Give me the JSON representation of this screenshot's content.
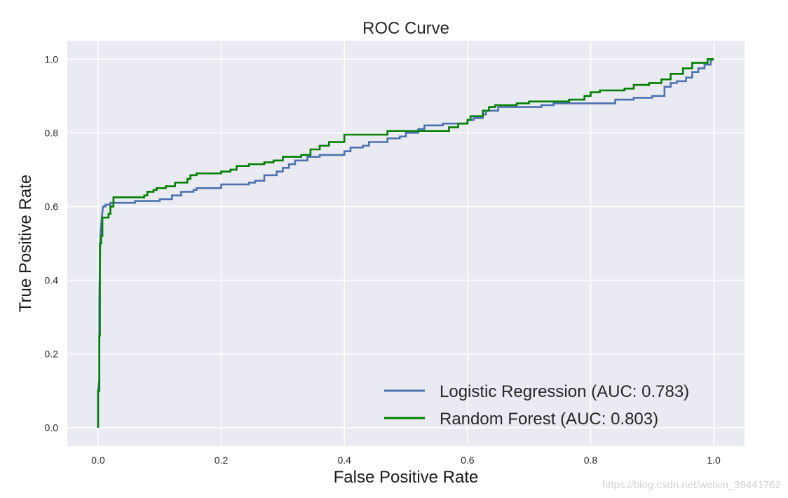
{
  "watermark": "https://blog.csdn.net/weixin_39441762",
  "chart_data": {
    "type": "line",
    "title": "ROC Curve",
    "xlabel": "False Positive Rate",
    "ylabel": "True Positive Rate",
    "xlim": [
      -0.05,
      1.05
    ],
    "ylim": [
      -0.05,
      1.05
    ],
    "xticks": [
      0.0,
      0.2,
      0.4,
      0.6,
      0.8,
      1.0
    ],
    "yticks": [
      0.0,
      0.2,
      0.4,
      0.6,
      0.8,
      1.0
    ],
    "xtick_labels": [
      "0.0",
      "0.2",
      "0.4",
      "0.6",
      "0.8",
      "1.0"
    ],
    "ytick_labels": [
      "0.0",
      "0.2",
      "0.4",
      "0.6",
      "0.8",
      "1.0"
    ],
    "grid": true,
    "legend_position": "lower-right",
    "background_color": "#eaeaf2",
    "series": [
      {
        "name": "Logistic Regression (AUC: 0.783)",
        "color": "#4c72b0",
        "points": [
          [
            0.0,
            0.0
          ],
          [
            0.0,
            0.1
          ],
          [
            0.002,
            0.13
          ],
          [
            0.002,
            0.35
          ],
          [
            0.003,
            0.45
          ],
          [
            0.004,
            0.53
          ],
          [
            0.006,
            0.57
          ],
          [
            0.008,
            0.6
          ],
          [
            0.012,
            0.6
          ],
          [
            0.012,
            0.605
          ],
          [
            0.02,
            0.605
          ],
          [
            0.02,
            0.61
          ],
          [
            0.06,
            0.61
          ],
          [
            0.06,
            0.615
          ],
          [
            0.1,
            0.615
          ],
          [
            0.1,
            0.62
          ],
          [
            0.12,
            0.62
          ],
          [
            0.12,
            0.63
          ],
          [
            0.135,
            0.63
          ],
          [
            0.135,
            0.64
          ],
          [
            0.155,
            0.64
          ],
          [
            0.155,
            0.645
          ],
          [
            0.16,
            0.645
          ],
          [
            0.16,
            0.65
          ],
          [
            0.2,
            0.65
          ],
          [
            0.2,
            0.66
          ],
          [
            0.245,
            0.66
          ],
          [
            0.245,
            0.665
          ],
          [
            0.255,
            0.665
          ],
          [
            0.255,
            0.67
          ],
          [
            0.27,
            0.67
          ],
          [
            0.27,
            0.685
          ],
          [
            0.29,
            0.685
          ],
          [
            0.29,
            0.695
          ],
          [
            0.3,
            0.695
          ],
          [
            0.3,
            0.705
          ],
          [
            0.31,
            0.705
          ],
          [
            0.31,
            0.715
          ],
          [
            0.32,
            0.715
          ],
          [
            0.32,
            0.725
          ],
          [
            0.34,
            0.725
          ],
          [
            0.34,
            0.735
          ],
          [
            0.36,
            0.735
          ],
          [
            0.36,
            0.74
          ],
          [
            0.4,
            0.74
          ],
          [
            0.4,
            0.75
          ],
          [
            0.41,
            0.75
          ],
          [
            0.41,
            0.76
          ],
          [
            0.43,
            0.76
          ],
          [
            0.43,
            0.765
          ],
          [
            0.44,
            0.765
          ],
          [
            0.44,
            0.775
          ],
          [
            0.47,
            0.775
          ],
          [
            0.47,
            0.785
          ],
          [
            0.49,
            0.785
          ],
          [
            0.49,
            0.79
          ],
          [
            0.5,
            0.79
          ],
          [
            0.5,
            0.8
          ],
          [
            0.52,
            0.8
          ],
          [
            0.52,
            0.81
          ],
          [
            0.53,
            0.81
          ],
          [
            0.53,
            0.82
          ],
          [
            0.56,
            0.82
          ],
          [
            0.56,
            0.825
          ],
          [
            0.6,
            0.825
          ],
          [
            0.6,
            0.835
          ],
          [
            0.61,
            0.835
          ],
          [
            0.61,
            0.84
          ],
          [
            0.625,
            0.84
          ],
          [
            0.625,
            0.85
          ],
          [
            0.63,
            0.85
          ],
          [
            0.63,
            0.86
          ],
          [
            0.65,
            0.86
          ],
          [
            0.65,
            0.87
          ],
          [
            0.72,
            0.87
          ],
          [
            0.72,
            0.875
          ],
          [
            0.74,
            0.875
          ],
          [
            0.74,
            0.88
          ],
          [
            0.84,
            0.88
          ],
          [
            0.84,
            0.89
          ],
          [
            0.87,
            0.89
          ],
          [
            0.87,
            0.895
          ],
          [
            0.9,
            0.895
          ],
          [
            0.9,
            0.9
          ],
          [
            0.92,
            0.9
          ],
          [
            0.92,
            0.925
          ],
          [
            0.93,
            0.925
          ],
          [
            0.93,
            0.935
          ],
          [
            0.94,
            0.935
          ],
          [
            0.94,
            0.94
          ],
          [
            0.955,
            0.94
          ],
          [
            0.955,
            0.95
          ],
          [
            0.965,
            0.95
          ],
          [
            0.965,
            0.965
          ],
          [
            0.975,
            0.965
          ],
          [
            0.975,
            0.975
          ],
          [
            0.985,
            0.975
          ],
          [
            0.985,
            0.985
          ],
          [
            0.995,
            0.985
          ],
          [
            0.995,
            0.995
          ],
          [
            1.0,
            1.0
          ]
        ]
      },
      {
        "name": "Random Forest (AUC: 0.803)",
        "color": "#008000",
        "points": [
          [
            0.0,
            0.0
          ],
          [
            0.0,
            0.1
          ],
          [
            0.002,
            0.1
          ],
          [
            0.002,
            0.25
          ],
          [
            0.003,
            0.25
          ],
          [
            0.003,
            0.5
          ],
          [
            0.005,
            0.5
          ],
          [
            0.005,
            0.52
          ],
          [
            0.007,
            0.52
          ],
          [
            0.007,
            0.57
          ],
          [
            0.017,
            0.57
          ],
          [
            0.017,
            0.58
          ],
          [
            0.02,
            0.58
          ],
          [
            0.02,
            0.6
          ],
          [
            0.025,
            0.6
          ],
          [
            0.025,
            0.625
          ],
          [
            0.075,
            0.625
          ],
          [
            0.075,
            0.63
          ],
          [
            0.08,
            0.63
          ],
          [
            0.08,
            0.64
          ],
          [
            0.09,
            0.64
          ],
          [
            0.09,
            0.645
          ],
          [
            0.095,
            0.645
          ],
          [
            0.095,
            0.65
          ],
          [
            0.11,
            0.65
          ],
          [
            0.11,
            0.655
          ],
          [
            0.125,
            0.655
          ],
          [
            0.125,
            0.665
          ],
          [
            0.145,
            0.665
          ],
          [
            0.145,
            0.675
          ],
          [
            0.15,
            0.675
          ],
          [
            0.15,
            0.685
          ],
          [
            0.16,
            0.685
          ],
          [
            0.16,
            0.69
          ],
          [
            0.2,
            0.69
          ],
          [
            0.2,
            0.695
          ],
          [
            0.215,
            0.695
          ],
          [
            0.215,
            0.7
          ],
          [
            0.225,
            0.7
          ],
          [
            0.225,
            0.71
          ],
          [
            0.245,
            0.71
          ],
          [
            0.245,
            0.715
          ],
          [
            0.27,
            0.715
          ],
          [
            0.27,
            0.72
          ],
          [
            0.285,
            0.72
          ],
          [
            0.285,
            0.725
          ],
          [
            0.3,
            0.725
          ],
          [
            0.3,
            0.735
          ],
          [
            0.33,
            0.735
          ],
          [
            0.33,
            0.74
          ],
          [
            0.345,
            0.74
          ],
          [
            0.345,
            0.755
          ],
          [
            0.36,
            0.755
          ],
          [
            0.36,
            0.765
          ],
          [
            0.375,
            0.765
          ],
          [
            0.375,
            0.775
          ],
          [
            0.4,
            0.775
          ],
          [
            0.4,
            0.795
          ],
          [
            0.47,
            0.795
          ],
          [
            0.47,
            0.805
          ],
          [
            0.57,
            0.805
          ],
          [
            0.57,
            0.815
          ],
          [
            0.585,
            0.815
          ],
          [
            0.585,
            0.825
          ],
          [
            0.6,
            0.825
          ],
          [
            0.6,
            0.835
          ],
          [
            0.605,
            0.835
          ],
          [
            0.605,
            0.845
          ],
          [
            0.625,
            0.845
          ],
          [
            0.625,
            0.86
          ],
          [
            0.635,
            0.86
          ],
          [
            0.635,
            0.87
          ],
          [
            0.645,
            0.87
          ],
          [
            0.645,
            0.875
          ],
          [
            0.68,
            0.875
          ],
          [
            0.68,
            0.88
          ],
          [
            0.7,
            0.88
          ],
          [
            0.7,
            0.885
          ],
          [
            0.765,
            0.885
          ],
          [
            0.765,
            0.89
          ],
          [
            0.79,
            0.89
          ],
          [
            0.79,
            0.9
          ],
          [
            0.8,
            0.9
          ],
          [
            0.8,
            0.91
          ],
          [
            0.815,
            0.91
          ],
          [
            0.815,
            0.915
          ],
          [
            0.855,
            0.915
          ],
          [
            0.855,
            0.92
          ],
          [
            0.87,
            0.92
          ],
          [
            0.87,
            0.93
          ],
          [
            0.895,
            0.93
          ],
          [
            0.895,
            0.935
          ],
          [
            0.915,
            0.935
          ],
          [
            0.915,
            0.945
          ],
          [
            0.93,
            0.945
          ],
          [
            0.93,
            0.96
          ],
          [
            0.95,
            0.96
          ],
          [
            0.95,
            0.975
          ],
          [
            0.965,
            0.975
          ],
          [
            0.965,
            0.99
          ],
          [
            0.99,
            0.99
          ],
          [
            0.99,
            1.0
          ],
          [
            1.0,
            1.0
          ]
        ]
      }
    ]
  }
}
